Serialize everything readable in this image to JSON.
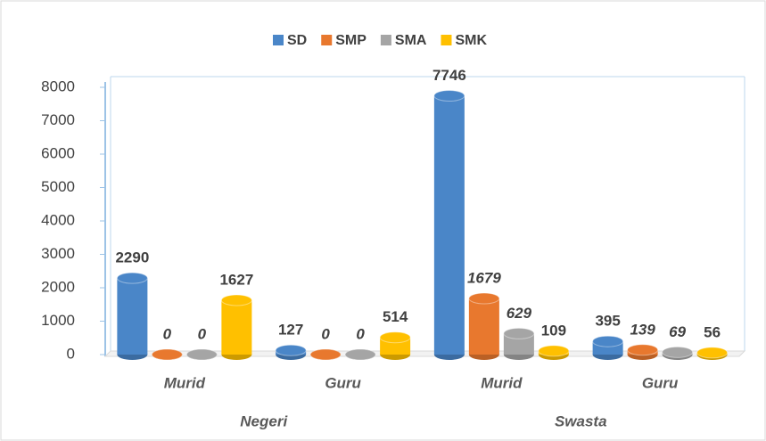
{
  "chart_data": {
    "type": "bar",
    "groups": [
      {
        "name": "Negeri",
        "categories": [
          "Murid",
          "Guru"
        ]
      },
      {
        "name": "Swasta",
        "categories": [
          "Murid",
          "Guru"
        ]
      }
    ],
    "series": [
      {
        "name": "SD",
        "color": "#4a86c8",
        "values": [
          2290,
          127,
          7746,
          395
        ]
      },
      {
        "name": "SMP",
        "color": "#e8782e",
        "values": [
          0,
          0,
          1679,
          139
        ]
      },
      {
        "name": "SMA",
        "color": "#a5a5a5",
        "values": [
          0,
          0,
          629,
          69
        ]
      },
      {
        "name": "SMK",
        "color": "#ffc000",
        "values": [
          1627,
          514,
          109,
          56
        ]
      }
    ],
    "ylim": [
      0,
      8000
    ],
    "yticks": [
      0,
      1000,
      2000,
      3000,
      4000,
      5000,
      6000,
      7000,
      8000
    ],
    "legend": "top"
  }
}
